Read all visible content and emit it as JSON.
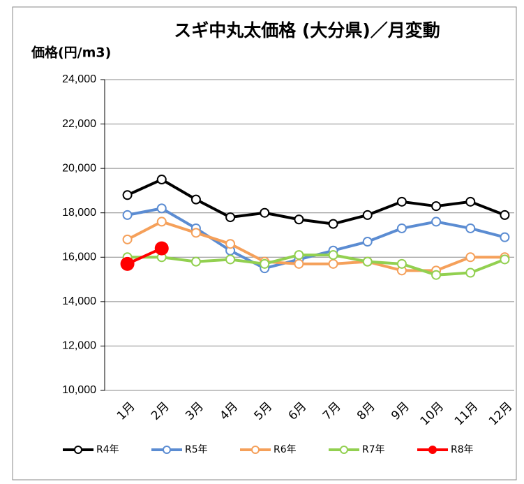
{
  "chart_data": {
    "type": "line",
    "title": "スギ中丸太価格 (大分県)／月変動",
    "y_label": "価格(円/m3)",
    "categories": [
      "1月",
      "2月",
      "3月",
      "4月",
      "5月",
      "6月",
      "7月",
      "8月",
      "9月",
      "10月",
      "11月",
      "12月"
    ],
    "series": [
      {
        "name": "R4年",
        "color": "#000000",
        "values": [
          18800,
          19500,
          18600,
          17800,
          18000,
          17700,
          17500,
          17900,
          18500,
          18300,
          18500,
          17900
        ]
      },
      {
        "name": "R5年",
        "color": "#5b8cd2",
        "values": [
          17900,
          18200,
          17300,
          16300,
          15500,
          15900,
          16300,
          16700,
          17300,
          17600,
          17300,
          16900
        ]
      },
      {
        "name": "R6年",
        "color": "#f5a05a",
        "values": [
          16800,
          17600,
          17100,
          16600,
          15800,
          15700,
          15700,
          15800,
          15400,
          15400,
          16000,
          16000
        ]
      },
      {
        "name": "R7年",
        "color": "#92d050",
        "values": [
          16000,
          16000,
          15800,
          15900,
          15700,
          16100,
          16100,
          15800,
          15700,
          15200,
          15300,
          15900
        ]
      },
      {
        "name": "R8年",
        "color": "#ff0000",
        "values": [
          15700,
          16400,
          null,
          null,
          null,
          null,
          null,
          null,
          null,
          null,
          null,
          null
        ]
      }
    ],
    "ylim": [
      10000,
      24000
    ],
    "yticks": [
      {
        "value": 10000,
        "label": "10,000"
      },
      {
        "value": 12000,
        "label": "12,000"
      },
      {
        "value": 14000,
        "label": "14,000"
      },
      {
        "value": 16000,
        "label": "16,000"
      },
      {
        "value": 18000,
        "label": "18,000"
      },
      {
        "value": 20000,
        "label": "20,000"
      },
      {
        "value": 22000,
        "label": "22,000"
      },
      {
        "value": 24000,
        "label": "24,000"
      }
    ],
    "grid": true
  }
}
